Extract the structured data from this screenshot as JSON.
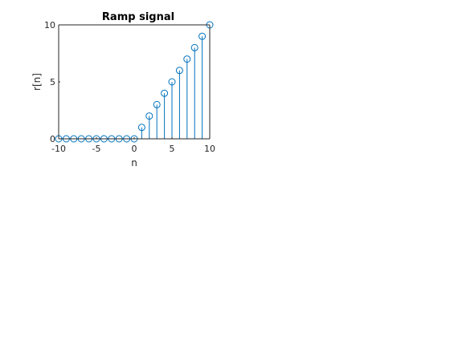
{
  "chart_data": {
    "type": "stem",
    "title": "Ramp signal",
    "xlabel": "n",
    "ylabel": "r[n]",
    "xlim": [
      -10,
      10
    ],
    "ylim": [
      0,
      10
    ],
    "xticks": [
      -10,
      -5,
      0,
      5,
      10
    ],
    "xtick_labels": [
      "-10",
      "-5",
      "0",
      "5",
      "10"
    ],
    "yticks": [
      0,
      5,
      10
    ],
    "ytick_labels": [
      "0",
      "5",
      "10"
    ],
    "grid": false,
    "series": [
      {
        "x": [
          -10,
          -9,
          -8,
          -7,
          -6,
          -5,
          -4,
          -3,
          -2,
          -1,
          0,
          1,
          2,
          3,
          4,
          5,
          6,
          7,
          8,
          9,
          10
        ],
        "y": [
          0,
          0,
          0,
          0,
          0,
          0,
          0,
          0,
          0,
          0,
          0,
          1,
          2,
          3,
          4,
          5,
          6,
          7,
          8,
          9,
          10
        ],
        "marker": "circle",
        "color": "#0072BD"
      }
    ]
  }
}
